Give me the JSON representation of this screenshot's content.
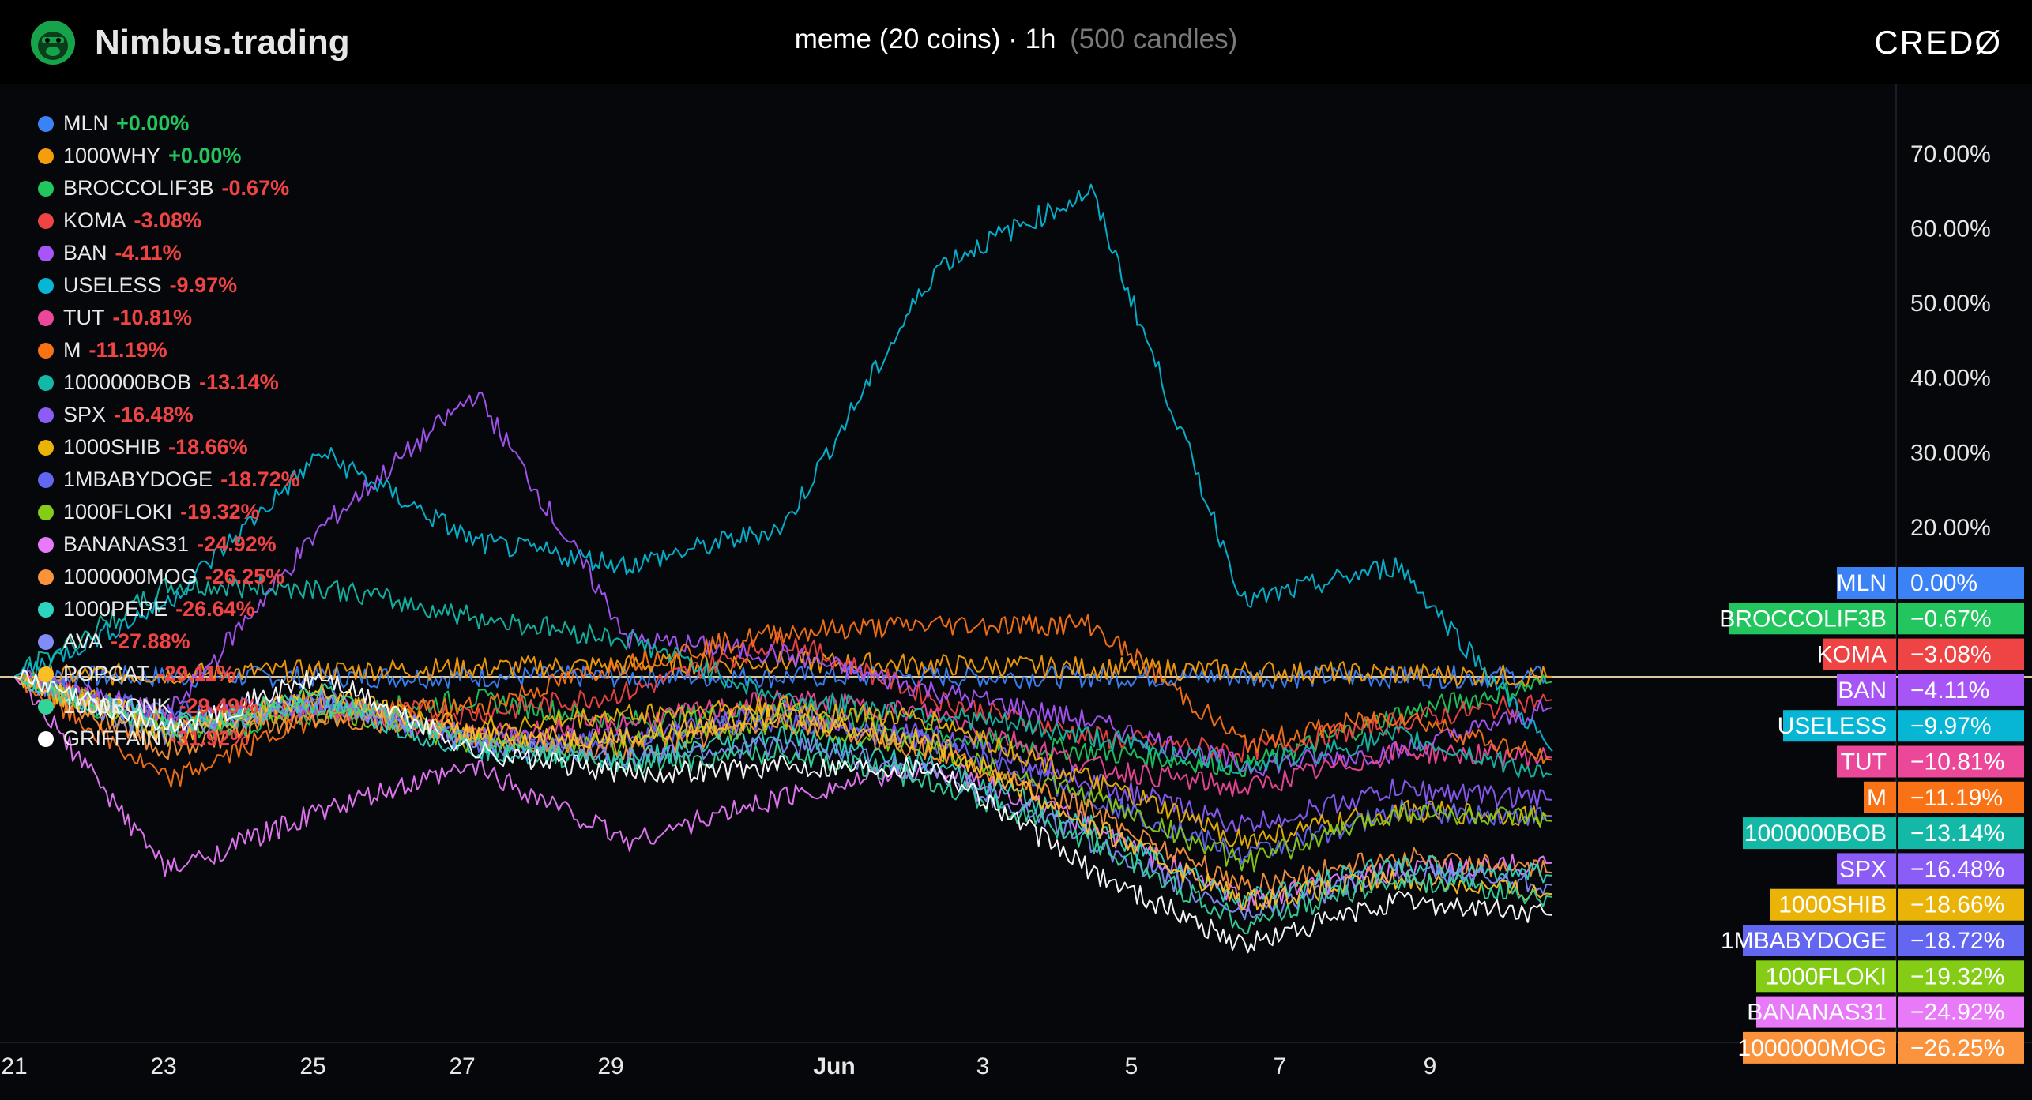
{
  "header": {
    "brand": "Nimbus.trading",
    "title_main": "meme (20 coins) · 1h",
    "title_sub": "(500 candles)",
    "right_logo": "CREDØ"
  },
  "legend": [
    {
      "name": "MLN",
      "change": "+0.00%",
      "color": "#3b82f6"
    },
    {
      "name": "1000WHY",
      "change": "+0.00%",
      "color": "#f59e0b"
    },
    {
      "name": "BROCCOLIF3B",
      "change": "-0.67%",
      "color": "#22c55e"
    },
    {
      "name": "KOMA",
      "change": "-3.08%",
      "color": "#ef4444"
    },
    {
      "name": "BAN",
      "change": "-4.11%",
      "color": "#a855f7"
    },
    {
      "name": "USELESS",
      "change": "-9.97%",
      "color": "#06b6d4"
    },
    {
      "name": "TUT",
      "change": "-10.81%",
      "color": "#ec4899"
    },
    {
      "name": "M",
      "change": "-11.19%",
      "color": "#f97316"
    },
    {
      "name": "1000000BOB",
      "change": "-13.14%",
      "color": "#14b8a6"
    },
    {
      "name": "SPX",
      "change": "-16.48%",
      "color": "#8b5cf6"
    },
    {
      "name": "1000SHIB",
      "change": "-18.66%",
      "color": "#eab308"
    },
    {
      "name": "1MBABYDOGE",
      "change": "-18.72%",
      "color": "#6366f1"
    },
    {
      "name": "1000FLOKI",
      "change": "-19.32%",
      "color": "#84cc16"
    },
    {
      "name": "BANANAS31",
      "change": "-24.92%",
      "color": "#e879f9"
    },
    {
      "name": "1000000MOG",
      "change": "-26.25%",
      "color": "#fb923c"
    },
    {
      "name": "1000PEPE",
      "change": "-26.64%",
      "color": "#2dd4bf"
    },
    {
      "name": "AVA",
      "change": "-27.88%",
      "color": "#818cf8"
    },
    {
      "name": "POPCAT",
      "change": "-29.11%",
      "color": "#fbbf24"
    },
    {
      "name": "1000BONK",
      "change": "-29.49%",
      "color": "#34d399"
    },
    {
      "name": "GRIFFAIN",
      "change": "-31.92%",
      "color": "#ffffff"
    }
  ],
  "chart_data": {
    "type": "line",
    "x_ticks": [
      "21",
      "23",
      "25",
      "27",
      "29",
      "Jun",
      "3",
      "5",
      "7",
      "9"
    ],
    "y_ticks": [
      "70.00%",
      "60.00%",
      "50.00%",
      "40.00%",
      "30.00%",
      "20.00%"
    ],
    "ylim": [
      -40,
      80
    ],
    "zero_line": 0,
    "series": [
      {
        "name": "MLN",
        "color": "#3b82f6",
        "x": [
          0,
          50,
          100
        ],
        "y": [
          0,
          0,
          0
        ]
      },
      {
        "name": "1000WHY",
        "color": "#f59e0b",
        "x": [
          0,
          50,
          100
        ],
        "y": [
          0,
          2,
          0
        ]
      },
      {
        "name": "BROCCOLIF3B",
        "color": "#22c55e",
        "x": [
          0,
          10,
          20,
          30,
          40,
          50,
          60,
          70,
          80,
          90,
          100
        ],
        "y": [
          0,
          -8,
          -5,
          -3,
          -6,
          -4,
          -8,
          -10,
          -12,
          -5,
          -0.67
        ]
      },
      {
        "name": "KOMA",
        "color": "#ef4444",
        "x": [
          0,
          10,
          20,
          30,
          40,
          50,
          60,
          70,
          80,
          90,
          100
        ],
        "y": [
          0,
          -6,
          -4,
          -5,
          -2,
          5,
          -3,
          -8,
          -10,
          -6,
          -3.08
        ]
      },
      {
        "name": "BAN",
        "color": "#a855f7",
        "x": [
          0,
          10,
          20,
          30,
          40,
          50,
          60,
          70,
          80,
          90,
          100
        ],
        "y": [
          0,
          -5,
          20,
          38,
          5,
          3,
          -2,
          -6,
          -12,
          -10,
          -4.11
        ]
      },
      {
        "name": "USELESS",
        "color": "#06b6d4",
        "x": [
          0,
          10,
          20,
          30,
          40,
          50,
          60,
          70,
          80,
          90,
          100
        ],
        "y": [
          0,
          10,
          30,
          18,
          15,
          20,
          55,
          65,
          10,
          15,
          -9.97
        ]
      },
      {
        "name": "TUT",
        "color": "#ec4899",
        "x": [
          0,
          10,
          20,
          30,
          40,
          50,
          60,
          70,
          80,
          90,
          100
        ],
        "y": [
          0,
          -6,
          -4,
          -8,
          -6,
          -3,
          -5,
          -12,
          -15,
          -10,
          -10.81
        ]
      },
      {
        "name": "M",
        "color": "#f97316",
        "x": [
          0,
          10,
          20,
          30,
          40,
          50,
          60,
          70,
          80,
          90,
          100
        ],
        "y": [
          0,
          -14,
          -5,
          -4,
          2,
          6,
          7,
          7,
          -9,
          -5,
          -11.19
        ]
      },
      {
        "name": "1000000BOB",
        "color": "#14b8a6",
        "x": [
          0,
          10,
          20,
          30,
          40,
          50,
          60,
          70,
          80,
          90,
          100
        ],
        "y": [
          0,
          12,
          12,
          8,
          5,
          -3,
          -5,
          -8,
          -12,
          -8,
          -13.14
        ]
      },
      {
        "name": "SPX",
        "color": "#8b5cf6",
        "x": [
          0,
          10,
          20,
          30,
          40,
          50,
          60,
          70,
          80,
          90,
          100
        ],
        "y": [
          0,
          -6,
          -4,
          -8,
          -8,
          -5,
          -8,
          -14,
          -20,
          -15,
          -16.48
        ]
      },
      {
        "name": "1000SHIB",
        "color": "#eab308",
        "x": [
          0,
          10,
          20,
          30,
          40,
          50,
          60,
          70,
          80,
          90,
          100
        ],
        "y": [
          0,
          -6,
          -3,
          -7,
          -5,
          -4,
          -6,
          -14,
          -22,
          -18,
          -18.66
        ]
      },
      {
        "name": "1MBABYDOGE",
        "color": "#6366f1",
        "x": [
          0,
          10,
          20,
          30,
          40,
          50,
          60,
          70,
          80,
          90,
          100
        ],
        "y": [
          0,
          -5,
          -3,
          -9,
          -8,
          -6,
          -9,
          -16,
          -24,
          -18,
          -18.72
        ]
      },
      {
        "name": "1000FLOKI",
        "color": "#84cc16",
        "x": [
          0,
          10,
          20,
          30,
          40,
          50,
          60,
          70,
          80,
          90,
          100
        ],
        "y": [
          0,
          -7,
          -4,
          -9,
          -9,
          -6,
          -10,
          -16,
          -25,
          -18,
          -19.32
        ]
      },
      {
        "name": "BANANAS31",
        "color": "#e879f9",
        "x": [
          0,
          10,
          20,
          30,
          40,
          50,
          60,
          70,
          80,
          90,
          100
        ],
        "y": [
          0,
          -26,
          -18,
          -12,
          -22,
          -16,
          -12,
          -20,
          -30,
          -26,
          -24.92
        ]
      },
      {
        "name": "1000000MOG",
        "color": "#fb923c",
        "x": [
          0,
          10,
          20,
          30,
          40,
          50,
          60,
          70,
          80,
          90,
          100
        ],
        "y": [
          0,
          -10,
          -5,
          -8,
          -10,
          -6,
          -10,
          -18,
          -28,
          -24,
          -26.25
        ]
      },
      {
        "name": "1000PEPE",
        "color": "#2dd4bf",
        "x": [
          0,
          10,
          20,
          30,
          40,
          50,
          60,
          70,
          80,
          90,
          100
        ],
        "y": [
          0,
          -6,
          -4,
          -10,
          -11,
          -8,
          -12,
          -20,
          -30,
          -25,
          -26.64
        ]
      },
      {
        "name": "AVA",
        "color": "#818cf8",
        "x": [
          0,
          10,
          20,
          30,
          40,
          50,
          60,
          70,
          80,
          90,
          100
        ],
        "y": [
          0,
          -8,
          -3,
          -9,
          -11,
          -9,
          -13,
          -22,
          -32,
          -26,
          -27.88
        ]
      },
      {
        "name": "POPCAT",
        "color": "#fbbf24",
        "x": [
          0,
          10,
          20,
          30,
          40,
          50,
          60,
          70,
          80,
          90,
          100
        ],
        "y": [
          0,
          -8,
          -2,
          -8,
          -8,
          -5,
          -9,
          -20,
          -30,
          -27,
          -29.11
        ]
      },
      {
        "name": "1000BONK",
        "color": "#34d399",
        "x": [
          0,
          10,
          20,
          30,
          40,
          50,
          60,
          70,
          80,
          90,
          100
        ],
        "y": [
          0,
          -7,
          -2,
          -9,
          -12,
          -10,
          -14,
          -22,
          -33,
          -27,
          -29.49
        ]
      },
      {
        "name": "GRIFFAIN",
        "color": "#ffffff",
        "x": [
          0,
          10,
          20,
          30,
          40,
          50,
          60,
          70,
          80,
          90,
          100
        ],
        "y": [
          0,
          -7,
          0,
          -10,
          -13,
          -12,
          -12,
          -26,
          -36,
          -30,
          -31.92
        ]
      }
    ],
    "right_labels": [
      {
        "name": "MLN",
        "value": "0.00%",
        "color": "#3b82f6"
      },
      {
        "name": "BROCCOLIF3B",
        "value": "−0.67%",
        "color": "#22c55e"
      },
      {
        "name": "KOMA",
        "value": "−3.08%",
        "color": "#ef4444"
      },
      {
        "name": "BAN",
        "value": "−4.11%",
        "color": "#a855f7"
      },
      {
        "name": "USELESS",
        "value": "−9.97%",
        "color": "#06b6d4"
      },
      {
        "name": "TUT",
        "value": "−10.81%",
        "color": "#ec4899"
      },
      {
        "name": "M",
        "value": "−11.19%",
        "color": "#f97316"
      },
      {
        "name": "1000000BOB",
        "value": "−13.14%",
        "color": "#14b8a6"
      },
      {
        "name": "SPX",
        "value": "−16.48%",
        "color": "#8b5cf6"
      },
      {
        "name": "1000SHIB",
        "value": "−18.66%",
        "color": "#eab308"
      },
      {
        "name": "1MBABYDOGE",
        "value": "−18.72%",
        "color": "#6366f1"
      },
      {
        "name": "1000FLOKI",
        "value": "−19.32%",
        "color": "#84cc16"
      },
      {
        "name": "BANANAS31",
        "value": "−24.92%",
        "color": "#e879f9"
      },
      {
        "name": "1000000MOG",
        "value": "−26.25%",
        "color": "#fb923c"
      }
    ]
  }
}
